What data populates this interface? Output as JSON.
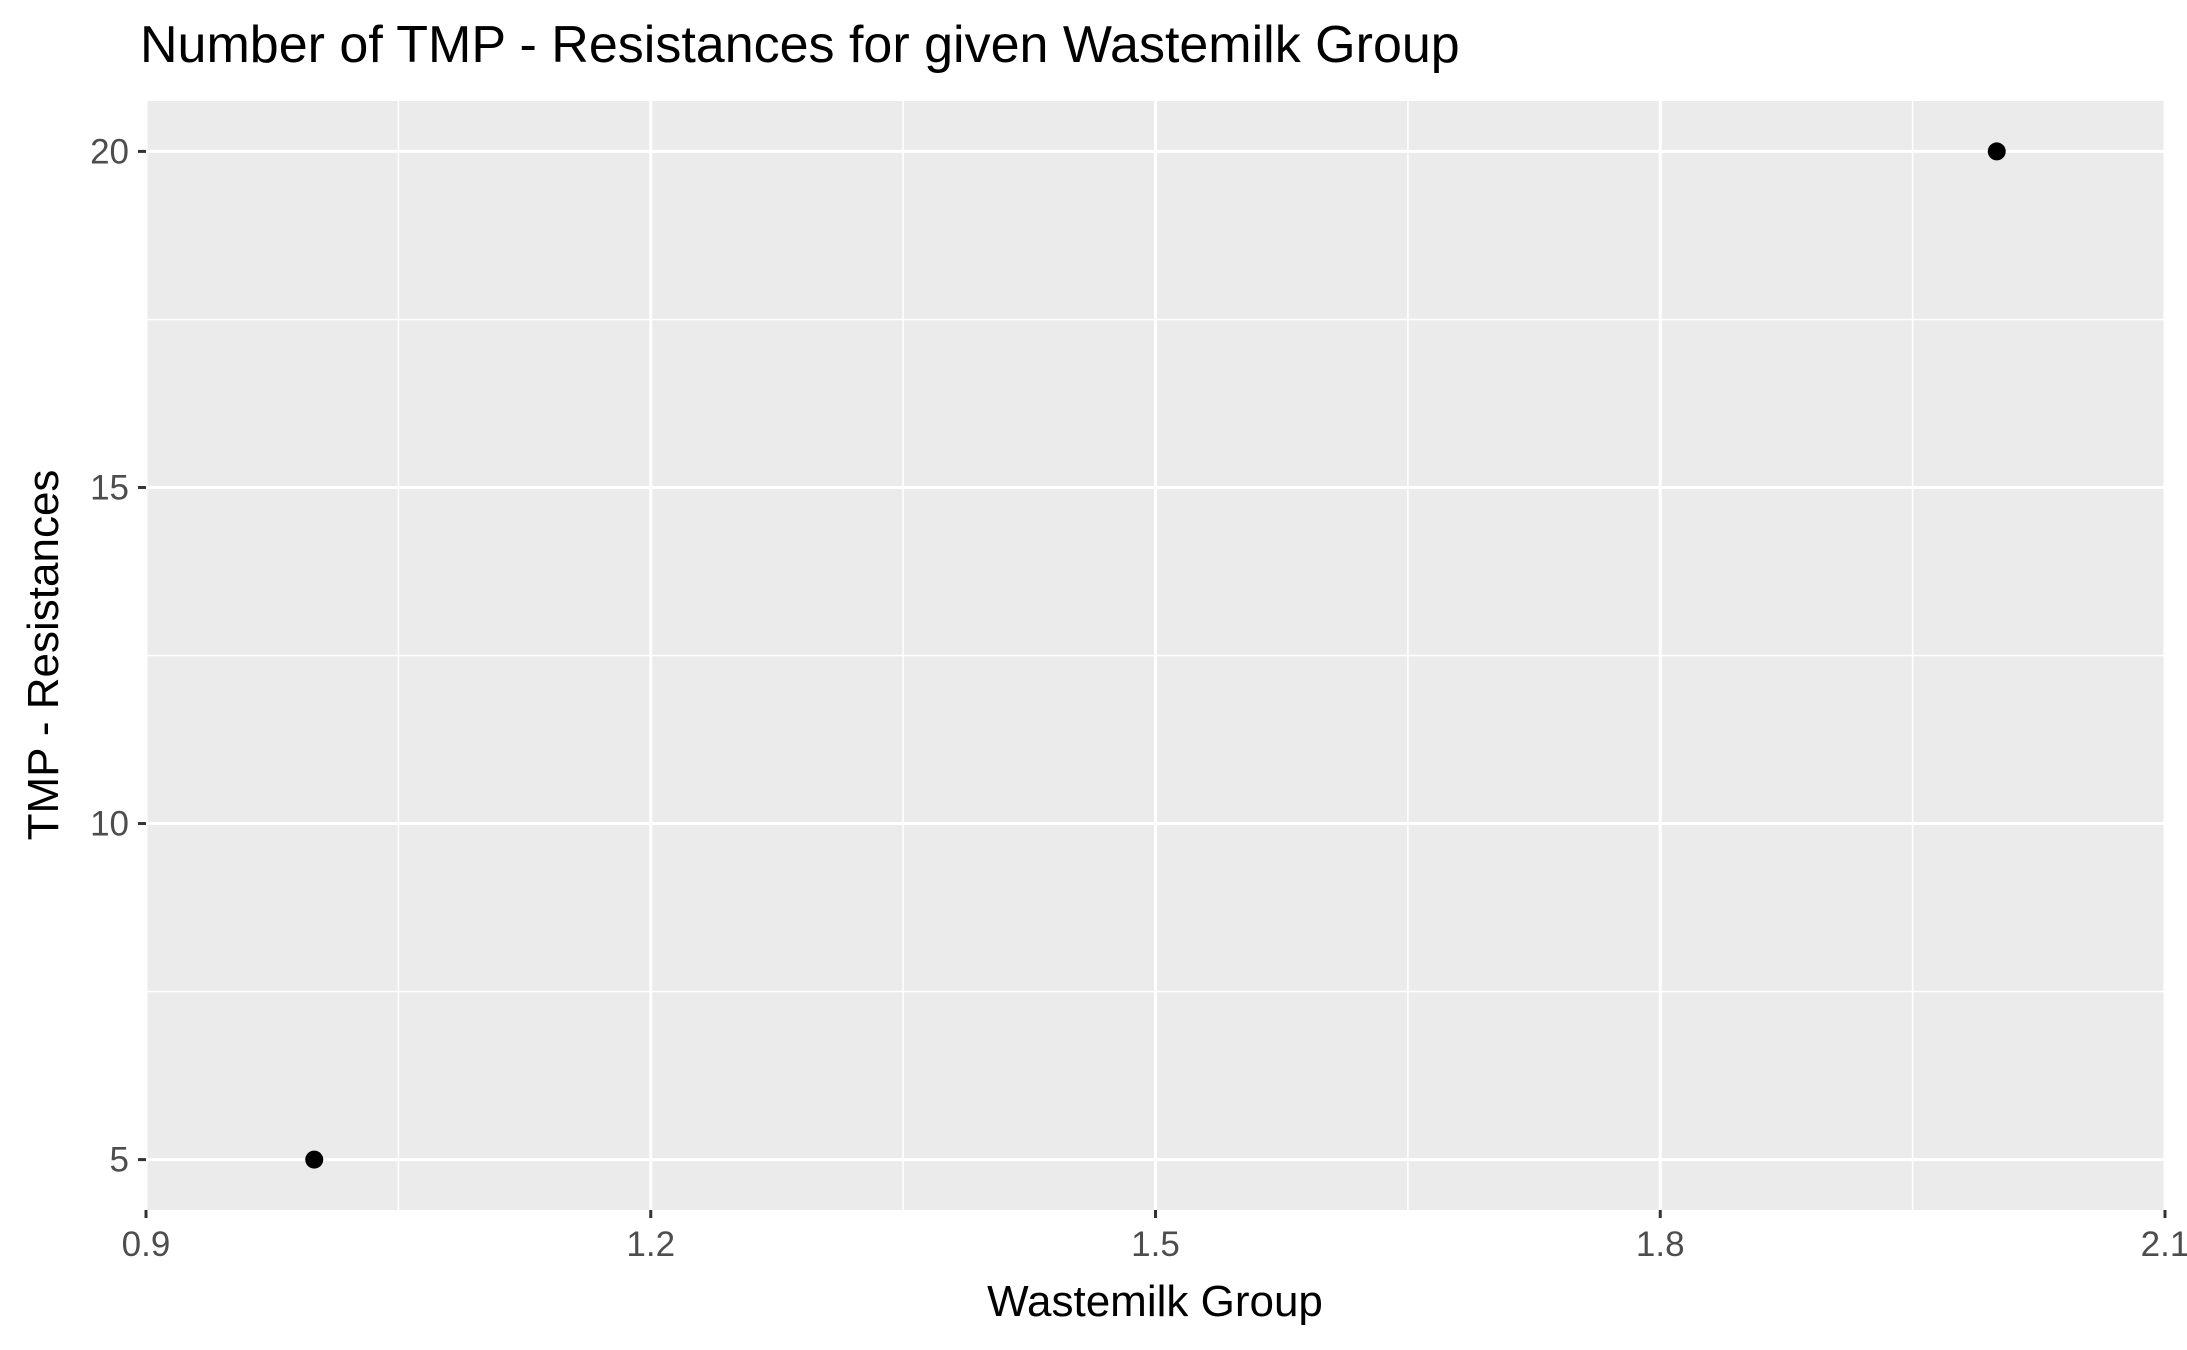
{
  "chart_data": {
    "type": "scatter",
    "title": "Number of TMP - Resistances for given Wastemilk Group",
    "xlabel": "Wastemilk Group",
    "ylabel": "TMP - Resistances",
    "xlim": [
      0.9,
      2.1
    ],
    "ylim": [
      4.25,
      20.75
    ],
    "x_ticks": [
      0.9,
      1.2,
      1.5,
      1.8,
      2.1
    ],
    "x_tick_labels": [
      "0.9",
      "1.2",
      "1.5",
      "1.8",
      "2.1"
    ],
    "x_minor_ticks": [
      1.05,
      1.35,
      1.65,
      1.95
    ],
    "y_ticks": [
      5,
      10,
      15,
      20
    ],
    "y_tick_labels": [
      "5",
      "10",
      "15",
      "20"
    ],
    "y_minor_ticks": [
      7.5,
      12.5,
      17.5
    ],
    "grid": true,
    "legend": "none",
    "series": [
      {
        "name": "TMP - Resistances",
        "points": [
          {
            "x": 1,
            "y": 5
          },
          {
            "x": 2,
            "y": 20
          }
        ]
      }
    ],
    "colors": {
      "panel_background": "#ebebeb",
      "grid_line": "#ffffff",
      "point": "#000000",
      "tick_mark": "#333333",
      "tick_label": "#4d4d4d",
      "text": "#000000"
    }
  }
}
